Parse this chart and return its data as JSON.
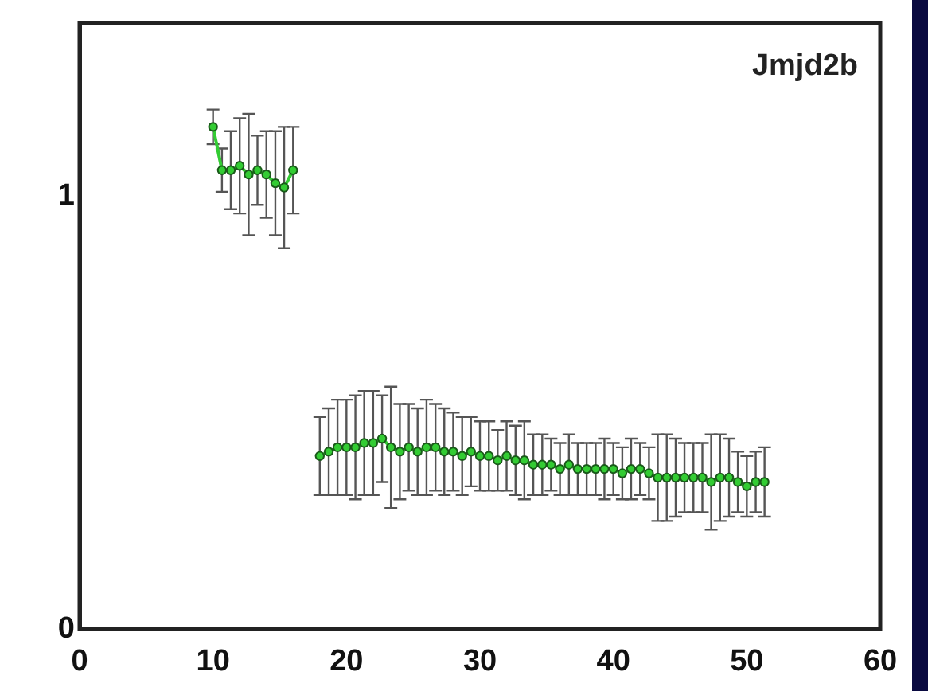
{
  "chart_data": {
    "type": "scatter",
    "title": "Jmjd2b",
    "xlim": [
      0,
      60
    ],
    "xticks": [
      0,
      10,
      20,
      30,
      40,
      50,
      60
    ],
    "ylim": [
      0,
      1.4
    ],
    "yticks": [
      0,
      1
    ],
    "grid": false,
    "legend": false,
    "marker": "circle",
    "line_style": "solid",
    "series": [
      {
        "type": "line",
        "color": "#33cc33",
        "x": [
          10,
          10.67,
          11.33,
          12,
          12.67,
          13.33,
          14,
          14.67,
          15.33,
          16,
          17,
          18,
          18.67,
          19.33,
          20,
          20.67,
          21.33,
          22,
          22.67,
          23.33,
          24,
          24.67,
          25.33,
          26,
          26.67,
          27.33,
          28,
          28.67,
          29.33,
          30,
          30.67,
          31.33,
          32,
          32.67,
          33.33,
          34,
          34.67,
          35.33,
          36,
          36.67,
          37.33,
          38,
          38.67,
          39.33,
          40,
          40.67,
          41.33,
          42,
          42.67,
          43.33,
          44,
          44.67,
          45.33,
          46,
          46.67,
          47.33,
          48,
          48.67,
          49.33,
          50,
          50.67,
          51.33
        ],
        "values": [
          1.16,
          1.06,
          1.06,
          1.07,
          1.05,
          1.06,
          1.05,
          1.03,
          1.02,
          1.06,
          null,
          0.4,
          0.41,
          0.42,
          0.42,
          0.42,
          0.43,
          0.43,
          0.44,
          0.42,
          0.41,
          0.42,
          0.41,
          0.42,
          0.42,
          0.41,
          0.41,
          0.4,
          0.41,
          0.4,
          0.4,
          0.39,
          0.4,
          0.39,
          0.39,
          0.38,
          0.38,
          0.38,
          0.37,
          0.38,
          0.37,
          0.37,
          0.37,
          0.37,
          0.37,
          0.36,
          0.37,
          0.37,
          0.36,
          0.35,
          0.35,
          0.35,
          0.35,
          0.35,
          0.35,
          0.34,
          0.35,
          0.35,
          0.34,
          0.33,
          0.34,
          0.34
        ],
        "errors": [
          0.04,
          0.05,
          0.09,
          0.11,
          0.14,
          0.08,
          0.1,
          0.12,
          0.14,
          0.1,
          null,
          0.09,
          0.1,
          0.11,
          0.11,
          0.12,
          0.12,
          0.12,
          0.1,
          0.14,
          0.11,
          0.1,
          0.1,
          0.11,
          0.1,
          0.1,
          0.09,
          0.09,
          0.08,
          0.08,
          0.08,
          0.07,
          0.08,
          0.08,
          0.09,
          0.07,
          0.07,
          0.06,
          0.06,
          0.07,
          0.06,
          0.06,
          0.06,
          0.07,
          0.06,
          0.06,
          0.07,
          0.06,
          0.06,
          0.1,
          0.1,
          0.09,
          0.08,
          0.08,
          0.08,
          0.11,
          0.1,
          0.09,
          0.07,
          0.07,
          0.07,
          0.08
        ]
      }
    ]
  }
}
